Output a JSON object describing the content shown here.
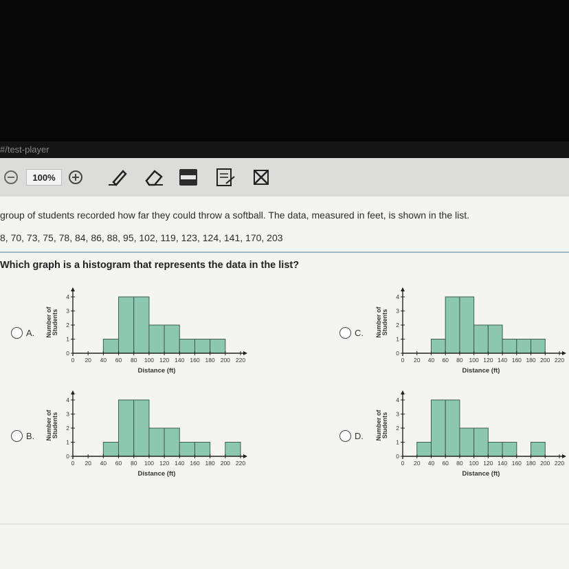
{
  "url": "#/test-player",
  "toolbar": {
    "zoom": "100%",
    "icons": [
      "zoom-out-icon",
      "zoom-in-icon",
      "pencil-icon",
      "eraser-icon",
      "line-reader-icon",
      "notepad-icon",
      "eliminate-choice-icon"
    ]
  },
  "question": {
    "prompt": "group of students recorded how far they could throw a softball. The data, measured in feet, is shown in the list.",
    "data_list": "8, 70, 73, 75, 78, 84, 86, 88, 95, 102, 119, 123, 124, 141, 170, 203",
    "stem": "Which graph is a histogram that represents the data in the list?"
  },
  "options": [
    {
      "label": "A."
    },
    {
      "label": "B."
    },
    {
      "label": "C."
    },
    {
      "label": "D."
    }
  ],
  "colors": {
    "bar_fill": "#8cc7b2",
    "bar_stroke": "#3d5c52",
    "separator": "#9ab7c9"
  },
  "chart_data": [
    {
      "type": "bar",
      "option": "A.",
      "ylabel": "Number of Students",
      "xlabel": "Distance (ft)",
      "x_ticks": [
        "0",
        "20",
        "40",
        "60",
        "80",
        "100",
        "120",
        "140",
        "160",
        "180",
        "200",
        "220"
      ],
      "y_ticks": [
        "0",
        "1",
        "2",
        "3",
        "4"
      ],
      "bin_edges": [
        40,
        60,
        80,
        100,
        120,
        140,
        160,
        180,
        200
      ],
      "values": [
        1,
        4,
        4,
        2,
        2,
        1,
        1,
        1
      ],
      "ylim": [
        0,
        4
      ],
      "xlim": [
        0,
        220
      ]
    },
    {
      "type": "bar",
      "option": "B.",
      "ylabel": "Number of Students",
      "xlabel": "Distance (ft)",
      "x_ticks": [
        "0",
        "20",
        "40",
        "60",
        "80",
        "100",
        "120",
        "140",
        "160",
        "180",
        "200",
        "220"
      ],
      "y_ticks": [
        "0",
        "1",
        "2",
        "3",
        "4"
      ],
      "bin_edges": [
        40,
        60,
        80,
        100,
        120,
        140,
        160,
        180,
        200,
        220
      ],
      "values": [
        1,
        4,
        4,
        2,
        2,
        1,
        1,
        0,
        1
      ],
      "ylim": [
        0,
        4
      ],
      "xlim": [
        0,
        220
      ]
    },
    {
      "type": "bar",
      "option": "C.",
      "ylabel": "Number of Students",
      "xlabel": "Distance (ft)",
      "x_ticks": [
        "0",
        "20",
        "40",
        "60",
        "80",
        "100",
        "120",
        "140",
        "160",
        "180",
        "200",
        "220"
      ],
      "y_ticks": [
        "0",
        "1",
        "2",
        "3",
        "4"
      ],
      "bin_edges": [
        40,
        60,
        80,
        100,
        120,
        140,
        160,
        180,
        200
      ],
      "values": [
        1,
        4,
        4,
        2,
        2,
        1,
        1,
        1
      ],
      "ylim": [
        0,
        4
      ],
      "xlim": [
        0,
        220
      ]
    },
    {
      "type": "bar",
      "option": "D.",
      "ylabel": "Number of Students",
      "xlabel": "Distance (ft)",
      "x_ticks": [
        "0",
        "20",
        "40",
        "60",
        "80",
        "100",
        "120",
        "140",
        "160",
        "180",
        "200",
        "220"
      ],
      "y_ticks": [
        "0",
        "1",
        "2",
        "3",
        "4"
      ],
      "bin_edges": [
        20,
        40,
        60,
        80,
        100,
        120,
        140,
        160,
        180,
        200
      ],
      "values": [
        1,
        4,
        4,
        2,
        2,
        1,
        1,
        0,
        1
      ],
      "ylim": [
        0,
        4
      ],
      "xlim": [
        0,
        220
      ]
    }
  ]
}
